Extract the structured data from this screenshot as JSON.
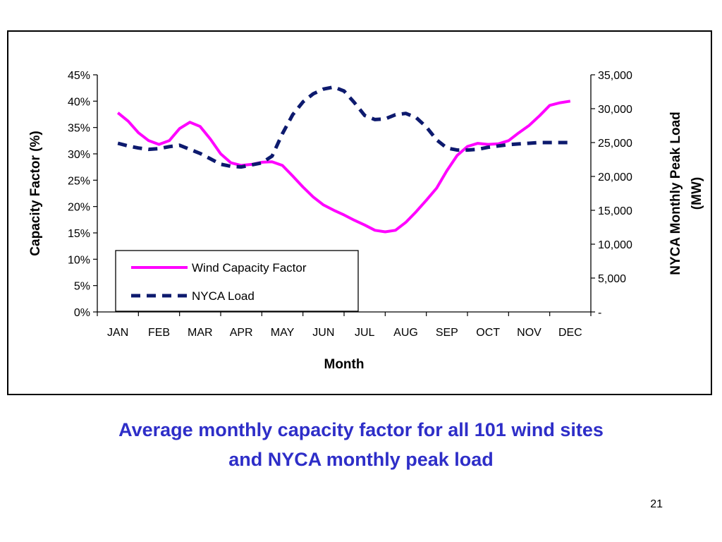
{
  "chart_data": {
    "type": "line",
    "categories": [
      "JAN",
      "FEB",
      "MAR",
      "APR",
      "MAY",
      "JUN",
      "JUL",
      "AUG",
      "SEP",
      "OCT",
      "NOV",
      "DEC"
    ],
    "xlabel": "Month",
    "ylabel_left": "Capacity Factor (%)",
    "ylabel_right_line1": "NYCA Monthly Peak Load",
    "ylabel_right_line2": "(MW)",
    "y_left": {
      "range": [
        0,
        45
      ],
      "ticks": [
        "0%",
        "5%",
        "10%",
        "15%",
        "20%",
        "25%",
        "30%",
        "35%",
        "40%",
        "45%"
      ]
    },
    "y_right": {
      "range": [
        0,
        35000
      ],
      "ticks": [
        "-",
        "5,000",
        "10,000",
        "15,000",
        "20,000",
        "25,000",
        "30,000",
        "35,000"
      ]
    },
    "series": [
      {
        "name": "Wind Capacity Factor",
        "axis": "left",
        "color": "#ff00ff",
        "style": "solid",
        "x": [
          0,
          0.25,
          0.5,
          0.75,
          1,
          1.25,
          1.5,
          1.75,
          2,
          2.25,
          2.5,
          2.75,
          3,
          3.25,
          3.5,
          3.75,
          4,
          4.25,
          4.5,
          4.75,
          5,
          5.25,
          5.5,
          5.75,
          6,
          6.25,
          6.5,
          6.75,
          7,
          7.25,
          7.5,
          7.75,
          8,
          8.25,
          8.5,
          8.75,
          9,
          9.25,
          9.5,
          9.75,
          10,
          10.25,
          10.5,
          10.75,
          11
        ],
        "values": [
          37.8,
          36.2,
          34,
          32.5,
          31.8,
          32.5,
          34.8,
          36,
          35.2,
          32.8,
          30,
          28.3,
          27.8,
          28,
          28.4,
          28.5,
          27.8,
          25.8,
          23.7,
          21.8,
          20.3,
          19.3,
          18.4,
          17.4,
          16.5,
          15.5,
          15.2,
          15.5,
          17,
          19,
          21.2,
          23.5,
          26.8,
          29.7,
          31.4,
          32,
          31.8,
          31.9,
          32.5,
          34,
          35.4,
          37.2,
          39.2,
          39.7,
          40
        ]
      },
      {
        "name": "NYCA Load",
        "axis": "right",
        "color": "#0d1a6e",
        "style": "dashed",
        "x": [
          0,
          0.25,
          0.5,
          0.75,
          1,
          1.25,
          1.5,
          1.75,
          2,
          2.25,
          2.5,
          2.75,
          3,
          3.25,
          3.5,
          3.75,
          4,
          4.25,
          4.5,
          4.75,
          5,
          5.25,
          5.5,
          5.75,
          6,
          6.25,
          6.5,
          6.75,
          7,
          7.25,
          7.5,
          7.75,
          8,
          8.25,
          8.5,
          8.75,
          9,
          9.25,
          9.5,
          9.75,
          10,
          10.25,
          10.5,
          10.75,
          11
        ],
        "values": [
          24900,
          24500,
          24200,
          24000,
          24100,
          24400,
          24600,
          24000,
          23400,
          22600,
          21800,
          21500,
          21400,
          21700,
          22000,
          23000,
          26300,
          29100,
          31000,
          32200,
          32900,
          33200,
          32600,
          30900,
          29000,
          28400,
          28500,
          29100,
          29300,
          28700,
          27300,
          25400,
          24200,
          23900,
          23900,
          24000,
          24300,
          24500,
          24700,
          24800,
          24900,
          25000,
          25000,
          25000,
          25000
        ]
      }
    ],
    "legend": {
      "placement": "bottom-left",
      "items": [
        "Wind Capacity Factor",
        "NYCA Load"
      ]
    },
    "grid": false
  },
  "caption": {
    "line1": "Average monthly capacity factor for all 101 wind sites",
    "line2": "and NYCA monthly peak load"
  },
  "page_number": "21"
}
